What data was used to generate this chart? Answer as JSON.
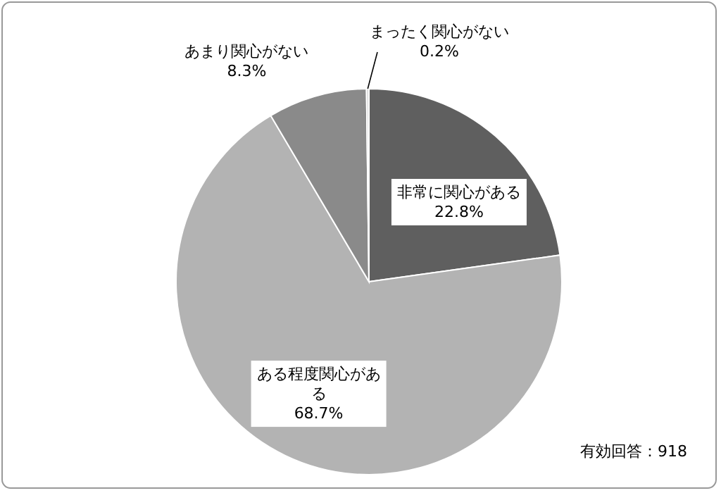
{
  "chart_data": {
    "type": "pie",
    "categories": [
      "非常に関心がある",
      "ある程度関心がある",
      "あまり関心がない",
      "まったく関心がない"
    ],
    "values": [
      22.8,
      68.7,
      8.3,
      0.2
    ],
    "value_labels": [
      "22.8%",
      "68.7%",
      "8.3%",
      "0.2%"
    ],
    "colors": [
      "#5f5f5f",
      "#b3b3b3",
      "#8a8a8a",
      "#d0d0d0"
    ],
    "annotations": [
      "有効回答：918"
    ]
  }
}
